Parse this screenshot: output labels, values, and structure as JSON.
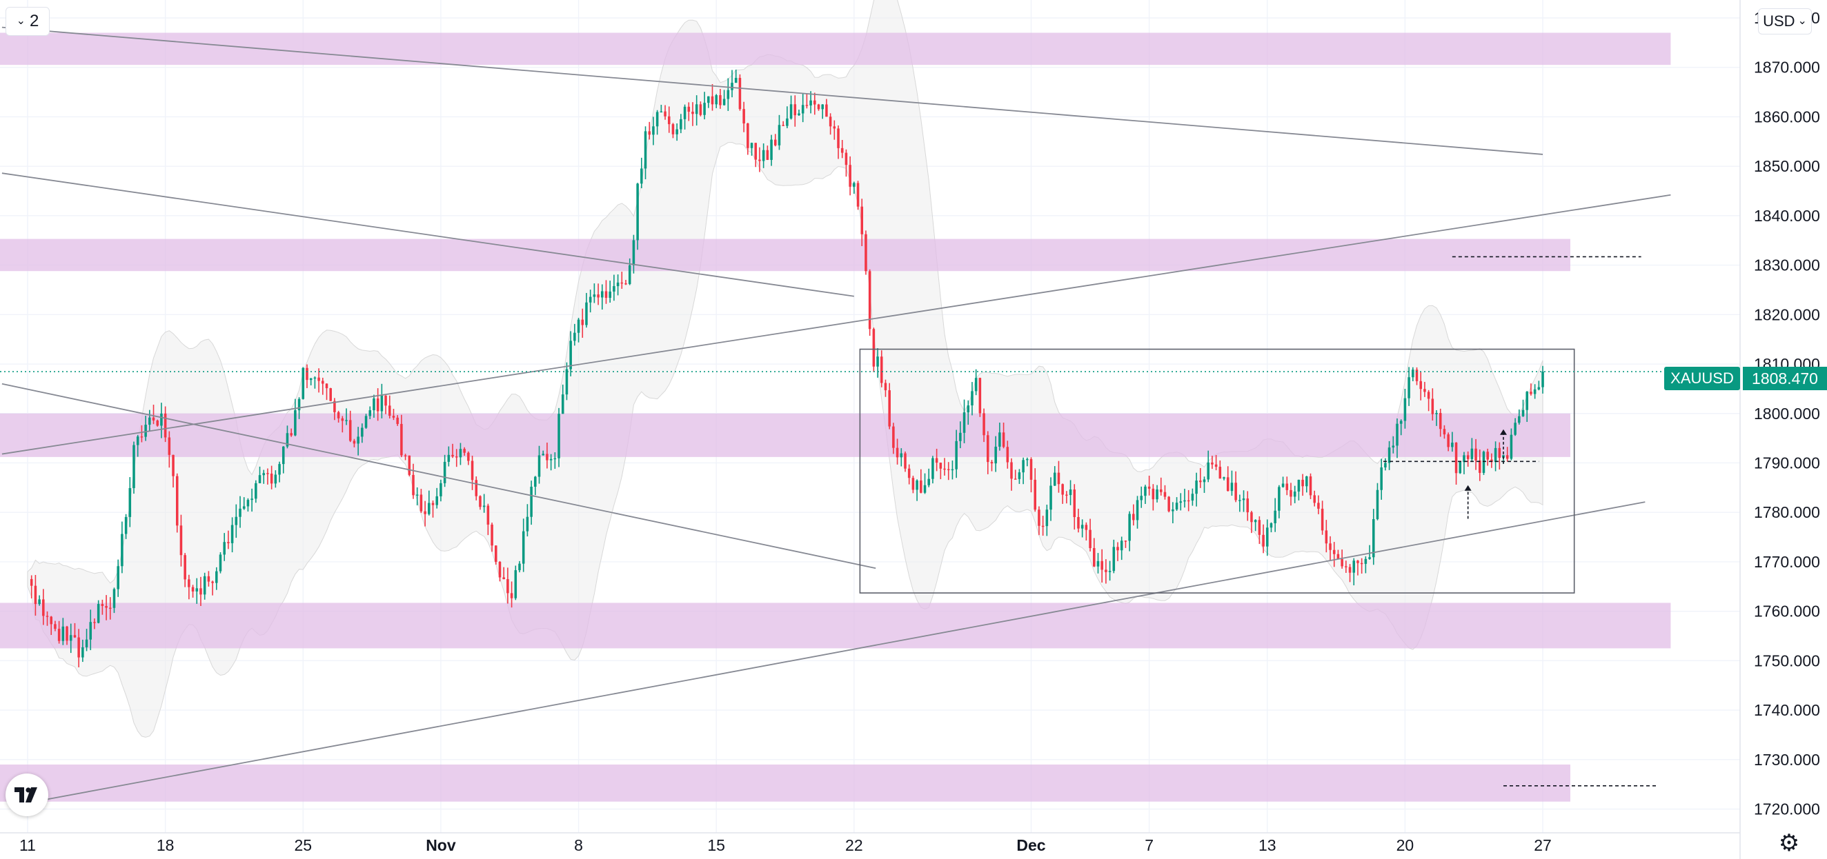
{
  "toolbar": {
    "interval_label": "2",
    "currency_label": "USD"
  },
  "price_scale": {
    "symbol": "XAUUSD",
    "last_price": "1808.470"
  },
  "colors": {
    "up": "#089981",
    "down": "#f23645",
    "zone": "#e1bee7",
    "bollinger": "#ececec",
    "trendline": "#868993"
  },
  "chart_data": {
    "type": "candlestick",
    "symbol": "XAUUSD",
    "ylim": [
      1717,
      1888
    ],
    "yticks": [
      1720,
      1730,
      1740,
      1750,
      1760,
      1770,
      1780,
      1790,
      1800,
      1810,
      1820,
      1830,
      1840,
      1850,
      1860,
      1870,
      1880
    ],
    "ytick_labels": [
      "1720.000",
      "1730.000",
      "1740.000",
      "1750.000",
      "1760.000",
      "1770.000",
      "1780.000",
      "1790.000",
      "1800.000",
      "1810.000",
      "1820.000",
      "1830.000",
      "1840.000",
      "1850.000",
      "1860.000",
      "1870.000",
      "1880.000"
    ],
    "xticks": [
      {
        "label": "11",
        "t": 0.0,
        "bold": false
      },
      {
        "label": "18",
        "t": 7.0,
        "bold": false
      },
      {
        "label": "25",
        "t": 14.0,
        "bold": false
      },
      {
        "label": "Nov",
        "t": 21.0,
        "bold": true
      },
      {
        "label": "8",
        "t": 28.0,
        "bold": false
      },
      {
        "label": "15",
        "t": 35.0,
        "bold": false
      },
      {
        "label": "22",
        "t": 42.0,
        "bold": false
      },
      {
        "label": "Dec",
        "t": 51.0,
        "bold": true
      },
      {
        "label": "7",
        "t": 57.0,
        "bold": false
      },
      {
        "label": "13",
        "t": 63.0,
        "bold": false
      },
      {
        "label": "20",
        "t": 70.0,
        "bold": false
      },
      {
        "label": "27",
        "t": 77.0,
        "bold": false
      }
    ],
    "xlim": [
      -1.3,
      83.5
    ],
    "last_price": 1808.47,
    "price_path": [
      [
        0.0,
        1768
      ],
      [
        0.5,
        1762
      ],
      [
        1.2,
        1758
      ],
      [
        2.0,
        1754
      ],
      [
        2.8,
        1752
      ],
      [
        3.5,
        1760
      ],
      [
        4.3,
        1762
      ],
      [
        4.8,
        1775
      ],
      [
        5.5,
        1795
      ],
      [
        6.2,
        1798
      ],
      [
        6.8,
        1800
      ],
      [
        7.3,
        1790
      ],
      [
        7.8,
        1770
      ],
      [
        8.5,
        1764
      ],
      [
        9.5,
        1768
      ],
      [
        10.5,
        1778
      ],
      [
        11.5,
        1785
      ],
      [
        12.5,
        1787
      ],
      [
        13.3,
        1795
      ],
      [
        14.0,
        1808
      ],
      [
        14.8,
        1806
      ],
      [
        15.6,
        1802
      ],
      [
        16.5,
        1795
      ],
      [
        17.2,
        1800
      ],
      [
        18.0,
        1802
      ],
      [
        18.7,
        1798
      ],
      [
        19.5,
        1785
      ],
      [
        20.2,
        1778
      ],
      [
        21.0,
        1787
      ],
      [
        21.8,
        1793
      ],
      [
        22.5,
        1788
      ],
      [
        23.4,
        1778
      ],
      [
        24.0,
        1768
      ],
      [
        24.5,
        1762
      ],
      [
        25.2,
        1775
      ],
      [
        26.0,
        1792
      ],
      [
        26.8,
        1793
      ],
      [
        27.4,
        1810
      ],
      [
        27.9,
        1818
      ],
      [
        28.8,
        1823
      ],
      [
        29.7,
        1826
      ],
      [
        30.5,
        1825
      ],
      [
        31.0,
        1845
      ],
      [
        31.5,
        1858
      ],
      [
        32.2,
        1860
      ],
      [
        33.0,
        1858
      ],
      [
        33.8,
        1862
      ],
      [
        34.5,
        1862
      ],
      [
        35.4,
        1864
      ],
      [
        35.9,
        1870
      ],
      [
        36.5,
        1855
      ],
      [
        37.2,
        1850
      ],
      [
        38.0,
        1855
      ],
      [
        38.8,
        1862
      ],
      [
        39.5,
        1863
      ],
      [
        40.3,
        1862
      ],
      [
        41.0,
        1858
      ],
      [
        41.5,
        1850
      ],
      [
        42.0,
        1845
      ],
      [
        42.5,
        1835
      ],
      [
        42.9,
        1812
      ],
      [
        43.4,
        1808
      ],
      [
        44.0,
        1795
      ],
      [
        44.6,
        1788
      ],
      [
        45.3,
        1785
      ],
      [
        46.2,
        1790
      ],
      [
        47.0,
        1790
      ],
      [
        47.6,
        1800
      ],
      [
        48.2,
        1808
      ],
      [
        48.8,
        1790
      ],
      [
        49.4,
        1795
      ],
      [
        50.1,
        1786
      ],
      [
        50.8,
        1790
      ],
      [
        51.5,
        1776
      ],
      [
        52.0,
        1787
      ],
      [
        52.8,
        1785
      ],
      [
        53.4,
        1778
      ],
      [
        54.0,
        1773
      ],
      [
        54.5,
        1768
      ],
      [
        55.0,
        1770
      ],
      [
        55.8,
        1776
      ],
      [
        56.6,
        1785
      ],
      [
        57.4,
        1783
      ],
      [
        58.2,
        1780
      ],
      [
        59.0,
        1782
      ],
      [
        59.6,
        1786
      ],
      [
        60.2,
        1790
      ],
      [
        60.8,
        1787
      ],
      [
        61.6,
        1783
      ],
      [
        62.2,
        1778
      ],
      [
        62.8,
        1775
      ],
      [
        63.5,
        1783
      ],
      [
        64.2,
        1785
      ],
      [
        65.0,
        1788
      ],
      [
        65.6,
        1780
      ],
      [
        66.2,
        1772
      ],
      [
        67.0,
        1770
      ],
      [
        67.6,
        1768
      ],
      [
        68.1,
        1770
      ],
      [
        68.6,
        1785
      ],
      [
        69.2,
        1792
      ],
      [
        69.8,
        1800
      ],
      [
        70.3,
        1808
      ],
      [
        70.8,
        1805
      ],
      [
        71.4,
        1800
      ],
      [
        72.0,
        1797
      ],
      [
        72.6,
        1790
      ],
      [
        73.2,
        1792
      ],
      [
        73.8,
        1790
      ],
      [
        74.4,
        1792
      ],
      [
        75.0,
        1790
      ],
      [
        75.5,
        1797
      ],
      [
        76.0,
        1802
      ],
      [
        76.5,
        1805
      ],
      [
        77.1,
        1808.47
      ]
    ],
    "zones": [
      {
        "from": 1870.5,
        "to": 1877.0,
        "t_end": 83.5
      },
      {
        "from": 1828.8,
        "to": 1835.3,
        "t_end": 78.4
      },
      {
        "from": 1791.2,
        "to": 1800.0,
        "t_end": 78.4
      },
      {
        "from": 1752.5,
        "to": 1761.7,
        "t_end": 83.5
      },
      {
        "from": 1721.5,
        "to": 1729.0,
        "t_end": 78.4
      }
    ],
    "trendlines": [
      {
        "t1": -1.3,
        "p1": 1878.1,
        "t2": 77.0,
        "p2": 1852.4
      },
      {
        "t1": -1.3,
        "p1": 1848.6,
        "t2": 42.0,
        "p2": 1823.7
      },
      {
        "t1": -1.3,
        "p1": 1806.0,
        "t2": 43.1,
        "p2": 1768.7
      },
      {
        "t1": -1.3,
        "p1": 1791.8,
        "t2": 83.5,
        "p2": 1844.2
      },
      {
        "t1": 0.9,
        "p1": 1721.9,
        "t2": 82.2,
        "p2": 1782.1
      }
    ],
    "range_box": {
      "t1": 42.3,
      "t2": 78.6,
      "p_high": 1813.0,
      "p_low": 1763.7
    },
    "dashed_levels": [
      {
        "price": 1831.7,
        "t1": 72.4,
        "t2": 82.0
      },
      {
        "price": 1790.3,
        "t1": 68.9,
        "t2": 76.8
      },
      {
        "price": 1724.7,
        "t1": 75.0,
        "t2": 82.8
      }
    ],
    "arrows": [
      {
        "t": 73.2,
        "p_from": 1778.7,
        "p_to": 1785.5
      },
      {
        "t": 75.0,
        "p_from": 1789.8,
        "p_to": 1796.8
      }
    ]
  }
}
